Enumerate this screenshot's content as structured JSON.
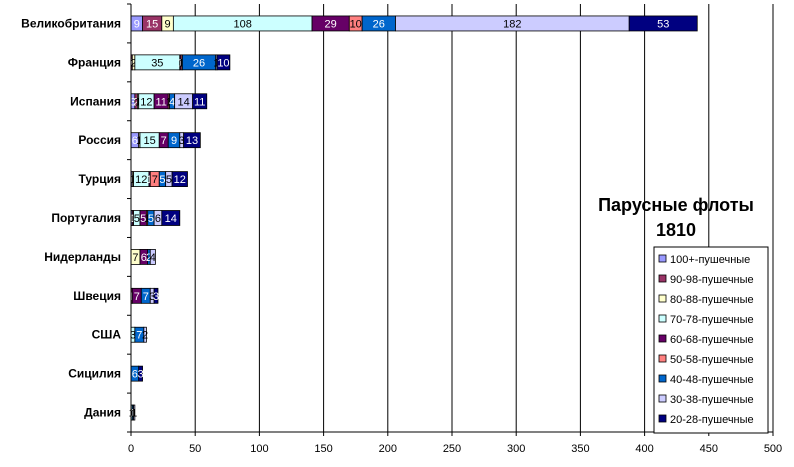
{
  "chart_data": {
    "type": "bar",
    "orientation": "horizontal",
    "stacked": true,
    "title_line1": "Парусные флоты",
    "title_line2": "1810",
    "categories": [
      "Великобритания",
      "Франция",
      "Испания",
      "Россия",
      "Турция",
      "Португалия",
      "Нидерланды",
      "Швеция",
      "США",
      "Сицилия",
      "Дания"
    ],
    "series": [
      {
        "name": "100+-пушечные",
        "color": "#9999ff",
        "text_color": "#ffffff",
        "values": [
          9,
          0,
          3,
          6,
          1,
          1,
          0,
          0,
          0,
          0,
          0
        ]
      },
      {
        "name": "90-98-пушечные",
        "color": "#993366",
        "text_color": "#ffffff",
        "values": [
          15,
          1,
          2,
          0,
          0,
          1,
          0,
          1,
          0,
          0,
          0
        ]
      },
      {
        "name": "80-88-пушечные",
        "color": "#ffffcc",
        "text_color": "#000000",
        "values": [
          9,
          2,
          1,
          1,
          1,
          0,
          7,
          0,
          0,
          0,
          0
        ]
      },
      {
        "name": "70-78-пушечные",
        "color": "#ccffff",
        "text_color": "#000000",
        "values": [
          108,
          35,
          12,
          15,
          12,
          5,
          0,
          0,
          3,
          0,
          1
        ]
      },
      {
        "name": "60-68-пушечные",
        "color": "#660066",
        "text_color": "#ffffff",
        "values": [
          29,
          1,
          11,
          7,
          1,
          5,
          6,
          7,
          0,
          0,
          0
        ]
      },
      {
        "name": "50-58-пушечные",
        "color": "#ff8080",
        "text_color": "#000000",
        "values": [
          10,
          1,
          1,
          0,
          7,
          1,
          0,
          0,
          0,
          0,
          0
        ]
      },
      {
        "name": "40-48-пушечные",
        "color": "#0066cc",
        "text_color": "#ffffff",
        "values": [
          26,
          26,
          4,
          9,
          5,
          5,
          2,
          7,
          7,
          6,
          1
        ]
      },
      {
        "name": "30-38-пушечные",
        "color": "#ccccff",
        "text_color": "#000000",
        "values": [
          182,
          1,
          14,
          3,
          5,
          6,
          4,
          3,
          2,
          0,
          1
        ]
      },
      {
        "name": "20-28-пушечные",
        "color": "#000080",
        "text_color": "#ffffff",
        "values": [
          53,
          10,
          11,
          13,
          12,
          14,
          0,
          3,
          0,
          3,
          0
        ]
      }
    ],
    "xlim": [
      0,
      500
    ],
    "xticks": [
      0,
      50,
      100,
      150,
      200,
      250,
      300,
      350,
      400,
      450,
      500
    ],
    "grid": "vertical",
    "legend_position": "right",
    "xlabel": "",
    "ylabel": ""
  }
}
